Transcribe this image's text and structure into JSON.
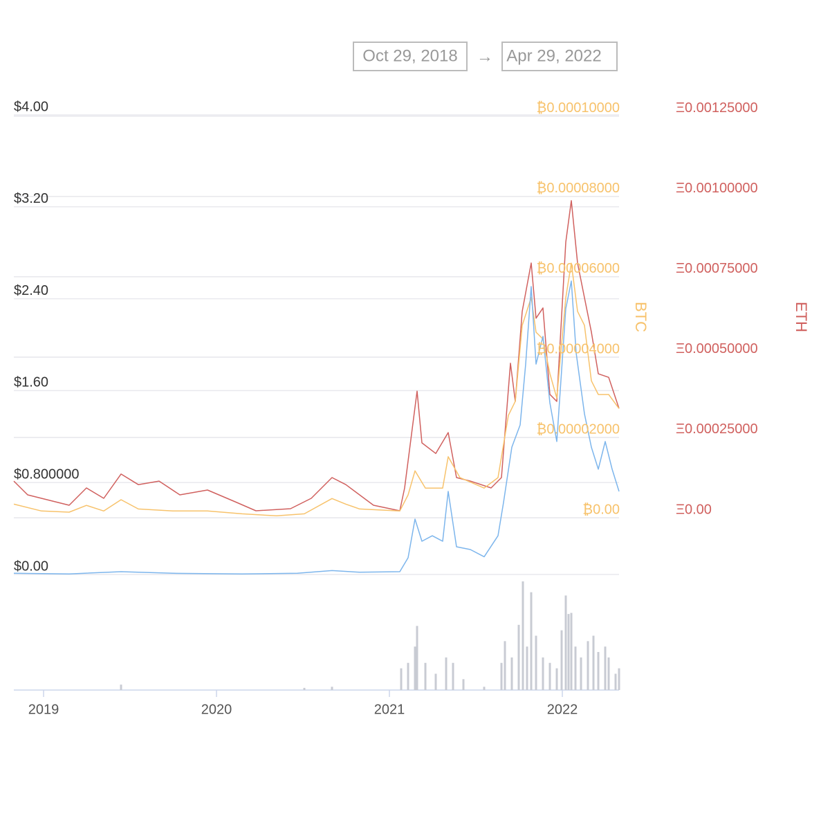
{
  "header": {
    "date_from": "Oct 29, 2018",
    "arrow": "→",
    "date_to": "Apr 29, 2022"
  },
  "chart_data": {
    "type": "line",
    "xlim": [
      2018.828,
      2022.328
    ],
    "xticks": [
      2019,
      2020,
      2021,
      2022
    ],
    "ylim": [
      0,
      4
    ],
    "yticks": [
      {
        "value": 0,
        "label": "$0.00"
      },
      {
        "value": 0.8,
        "label": "$0.800000"
      },
      {
        "value": 1.6,
        "label": "$1.60"
      },
      {
        "value": 2.4,
        "label": "$2.40"
      },
      {
        "value": 3.2,
        "label": "$3.20"
      },
      {
        "value": 4,
        "label": "$4.00"
      }
    ],
    "y2label": "BTC",
    "y2color": "#f7c26b",
    "y2lim": [
      -1.41e-05,
      0.0001003
    ],
    "y2ticks": [
      {
        "value": 0,
        "label": "₿0.00"
      },
      {
        "value": 2e-05,
        "label": "₿0.00002000"
      },
      {
        "value": 4e-05,
        "label": "₿0.00004000"
      },
      {
        "value": 6e-05,
        "label": "₿0.00006000"
      },
      {
        "value": 8e-05,
        "label": "₿0.00008000"
      },
      {
        "value": 0.0001,
        "label": "₿0.00010000"
      }
    ],
    "y3label": "ETH",
    "y3color": "#d0605e",
    "y3lim": [
      -0.0001767,
      0.001254
    ],
    "y3ticks": [
      {
        "value": 0,
        "label": "Ξ0.00"
      },
      {
        "value": 0.00025,
        "label": "Ξ0.00025000"
      },
      {
        "value": 0.0005,
        "label": "Ξ0.00050000"
      },
      {
        "value": 0.00075,
        "label": "Ξ0.00075000"
      },
      {
        "value": 0.001,
        "label": "Ξ0.00100000"
      },
      {
        "value": 0.00125,
        "label": "Ξ0.00125000"
      }
    ],
    "grid": true,
    "series": [
      {
        "color": "#7cb5ec",
        "axis": "y",
        "x": [
          2018.828,
          2019.148,
          2019.448,
          2019.748,
          2020.148,
          2020.468,
          2020.668,
          2020.828,
          2021.06,
          2021.108,
          2021.148,
          2021.188,
          2021.248,
          2021.308,
          2021.34,
          2021.388,
          2021.468,
          2021.548,
          2021.628,
          2021.66,
          2021.708,
          2021.756,
          2021.788,
          2021.82,
          2021.848,
          2021.888,
          2021.928,
          2021.968,
          2022.02,
          2022.052,
          2022.08,
          2022.128,
          2022.168,
          2022.208,
          2022.248,
          2022.288,
          2022.328
        ],
        "values": [
          0.01,
          0.005,
          0.024,
          0.01,
          0.005,
          0.01,
          0.034,
          0.019,
          0.024,
          0.145,
          0.482,
          0.289,
          0.337,
          0.289,
          0.723,
          0.241,
          0.217,
          0.154,
          0.337,
          0.627,
          1.108,
          1.301,
          1.831,
          2.506,
          1.831,
          2.072,
          1.494,
          1.157,
          2.313,
          2.554,
          1.928,
          1.398,
          1.108,
          0.916,
          1.157,
          0.916,
          0.723
        ]
      },
      {
        "color": "#f7c26b",
        "axis": "y2",
        "x": [
          2018.828,
          2018.988,
          2019.148,
          2019.248,
          2019.348,
          2019.448,
          2019.548,
          2019.748,
          2019.948,
          2020.148,
          2020.348,
          2020.508,
          2020.668,
          2020.748,
          2020.828,
          2021.06,
          2021.108,
          2021.148,
          2021.208,
          2021.308,
          2021.34,
          2021.408,
          2021.548,
          2021.628,
          2021.688,
          2021.728,
          2021.768,
          2021.82,
          2021.848,
          2021.888,
          2021.928,
          2021.968,
          2022.02,
          2022.052,
          2022.088,
          2022.128,
          2022.168,
          2022.208,
          2022.268,
          2022.328
        ],
        "values": [
          3.4e-06,
          1.7e-06,
          1.4e-06,
          3.1e-06,
          1.7e-06,
          4.5e-06,
          2.2e-06,
          1.7e-06,
          1.7e-06,
          1e-06,
          5e-07,
          1e-06,
          4.8e-06,
          3.4e-06,
          2.2e-06,
          1.7e-06,
          5.7e-06,
          1.17e-05,
          7.4e-06,
          7.4e-06,
          1.52e-05,
          1e-05,
          7.4e-06,
          1e-05,
          2.55e-05,
          2.9e-05,
          4.79e-05,
          5.48e-05,
          4.62e-05,
          4.45e-05,
          3.59e-05,
          2.98e-05,
          5.48e-05,
          6.34e-05,
          5.14e-05,
          4.79e-05,
          3.41e-05,
          3.07e-05,
          3.07e-05,
          2.72e-05
        ]
      },
      {
        "color": "#d0605e",
        "axis": "y3",
        "x": [
          2018.828,
          2018.908,
          2019.148,
          2019.248,
          2019.348,
          2019.448,
          2019.548,
          2019.668,
          2019.788,
          2019.948,
          2020.108,
          2020.228,
          2020.428,
          2020.548,
          2020.668,
          2020.748,
          2020.908,
          2021.06,
          2021.088,
          2021.16,
          2021.188,
          2021.268,
          2021.34,
          2021.388,
          2021.468,
          2021.588,
          2021.648,
          2021.7,
          2021.728,
          2021.768,
          2021.82,
          2021.848,
          2021.888,
          2021.928,
          2021.968,
          2022.02,
          2022.052,
          2022.088,
          2022.128,
          2022.168,
          2022.208,
          2022.268,
          2022.328
        ],
        "values": [
          0.000114,
          7.11e-05,
          3.88e-05,
          9.27e-05,
          6.03e-05,
          0.000136,
          0.000103,
          0.000114,
          7.11e-05,
          8.62e-05,
          4.96e-05,
          2.16e-05,
          2.8e-05,
          6.03e-05,
          0.000125,
          0.000103,
          3.88e-05,
          2.16e-05,
          9.27e-05,
          0.000394,
          0.000233,
          0.0002,
          0.000265,
          0.000125,
          0.000114,
          9.27e-05,
          0.000125,
          0.000481,
          0.000362,
          0.000642,
          0.000793,
          0.000621,
          0.000653,
          0.000384,
          0.000362,
          0.000858,
          0.000987,
          0.000793,
          0.000685,
          0.000578,
          0.000448,
          0.000437,
          0.00034
        ]
      }
    ],
    "volume": {
      "color": "#c8cbd3",
      "ylim": [
        0,
        100
      ],
      "x": [
        2019.448,
        2020.508,
        2020.668,
        2021.068,
        2021.108,
        2021.148,
        2021.16,
        2021.208,
        2021.268,
        2021.328,
        2021.368,
        2021.428,
        2021.548,
        2021.648,
        2021.668,
        2021.708,
        2021.748,
        2021.772,
        2021.796,
        2021.82,
        2021.848,
        2021.888,
        2021.928,
        2021.968,
        2021.996,
        2022.02,
        2022.036,
        2022.052,
        2022.076,
        2022.108,
        2022.148,
        2022.18,
        2022.208,
        2022.248,
        2022.268,
        2022.308,
        2022.328
      ],
      "values": [
        5,
        2,
        3,
        20,
        25,
        40,
        59,
        25,
        15,
        30,
        25,
        10,
        3,
        25,
        45,
        30,
        60,
        100,
        40,
        90,
        50,
        30,
        25,
        20,
        55,
        87,
        70,
        71,
        40,
        30,
        45,
        50,
        35,
        40,
        30,
        15,
        20
      ]
    }
  }
}
